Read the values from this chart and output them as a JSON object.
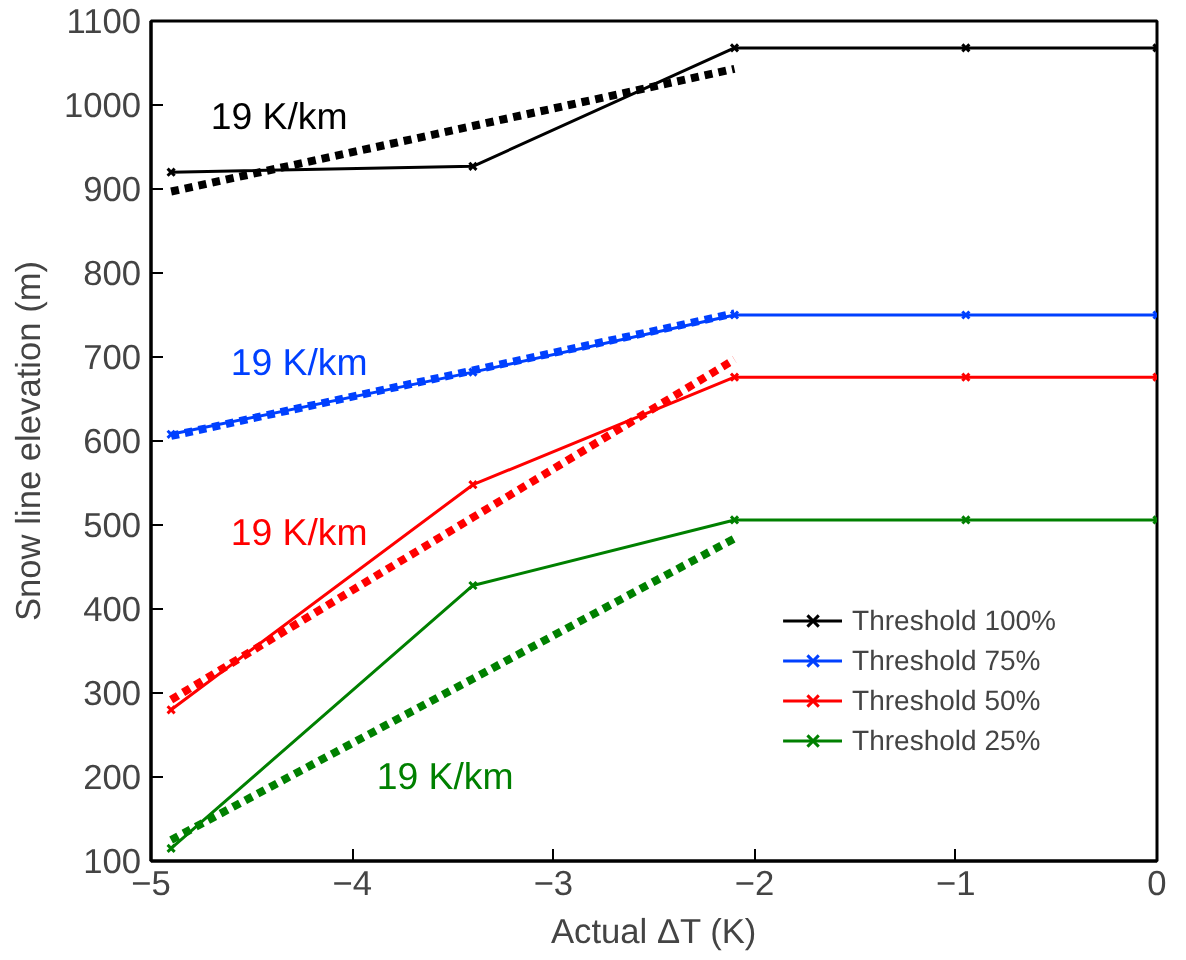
{
  "chart_data": {
    "type": "line",
    "xlabel": "Actual ΔT (K)",
    "ylabel": "Snow line elevation (m)",
    "x": [
      -4.9,
      -3.4,
      -2.1,
      -0.95,
      0
    ],
    "series": [
      {
        "name": "Threshold 100%",
        "color": "#000000",
        "values": [
          920,
          927,
          1068,
          1068,
          1068
        ],
        "marker": "cross",
        "line_style": "solid"
      },
      {
        "name": "Threshold 75%",
        "color": "#0040ff",
        "values": [
          608,
          682,
          750,
          750,
          750
        ],
        "marker": "cross",
        "line_style": "solid"
      },
      {
        "name": "Threshold 50%",
        "color": "#ff0000",
        "values": [
          280,
          548,
          676,
          676,
          676
        ],
        "marker": "cross",
        "line_style": "solid"
      },
      {
        "name": "Threshold 25%",
        "color": "#008000",
        "values": [
          115,
          428,
          506,
          506,
          506
        ],
        "marker": "cross",
        "line_style": "solid"
      },
      {
        "color": "#000000",
        "values": [
          897,
          975,
          1043,
          null,
          null
        ],
        "marker": "none",
        "line_style": "dashed"
      },
      {
        "color": "#0040ff",
        "values": [
          606,
          684,
          752,
          null,
          null
        ],
        "marker": "none",
        "line_style": "dashed"
      },
      {
        "color": "#ff0000",
        "values": [
          292,
          509,
          697,
          null,
          null
        ],
        "marker": "none",
        "line_style": "dashed"
      },
      {
        "color": "#008000",
        "values": [
          125,
          317,
          484,
          null,
          null
        ],
        "marker": "none",
        "line_style": "dashed"
      }
    ],
    "annotations": [
      "19 K/km",
      "19 K/km",
      "19 K/km",
      "19 K/km"
    ],
    "xlim": [
      -5,
      0
    ],
    "xticks": [
      {
        "value": -5,
        "label": "−5"
      },
      {
        "value": -4,
        "label": "−4"
      },
      {
        "value": -3,
        "label": "−3"
      },
      {
        "value": -2,
        "label": "−2"
      },
      {
        "value": -1,
        "label": "−1"
      },
      0
    ],
    "ylim": [
      100,
      1100
    ],
    "yticks": [
      100,
      200,
      300,
      400,
      500,
      600,
      700,
      800,
      900,
      1000,
      1100
    ],
    "grid": false,
    "legend": "bottom right"
  }
}
